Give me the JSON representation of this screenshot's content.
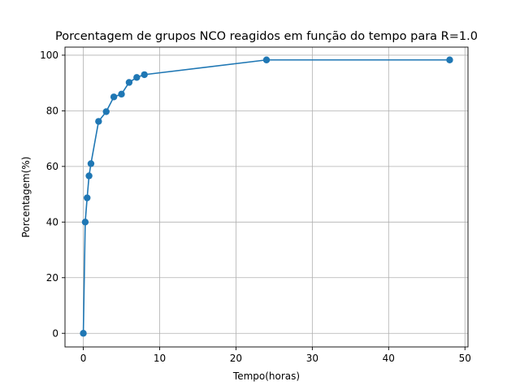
{
  "chart_data": {
    "type": "line",
    "title": "Porcentagem de grupos NCO reagidos em função do tempo para R=1.0",
    "xlabel": "Tempo(horas)",
    "ylabel": "Porcentagem(%)",
    "xlim": [
      -2.4,
      50.4
    ],
    "ylim": [
      -4.9,
      102.9
    ],
    "xticks": [
      0,
      10,
      20,
      30,
      40,
      50
    ],
    "yticks": [
      0,
      20,
      40,
      60,
      80,
      100
    ],
    "grid": true,
    "marker": "circle",
    "series": [
      {
        "color": "#1f77b4",
        "x": [
          0,
          0.25,
          0.5,
          0.75,
          1,
          2,
          3,
          4,
          5,
          6,
          7,
          8,
          24,
          48
        ],
        "y": [
          0,
          40,
          48.7,
          56.6,
          61,
          76.2,
          79.7,
          85,
          86,
          90.2,
          92,
          93,
          98.3,
          98.3
        ]
      }
    ]
  }
}
